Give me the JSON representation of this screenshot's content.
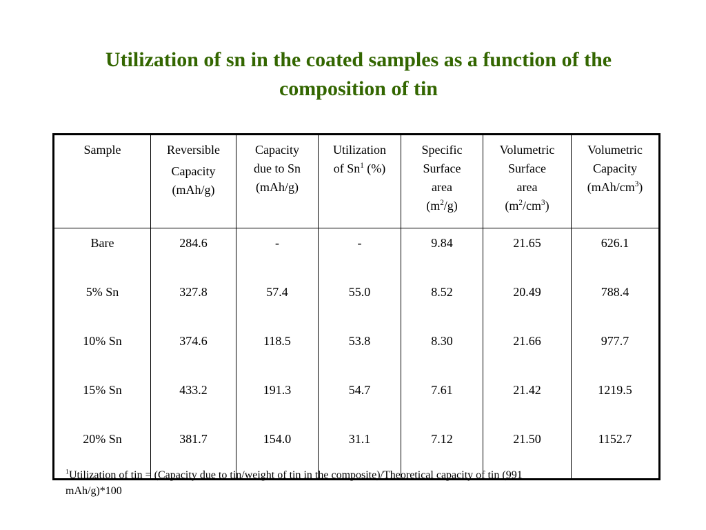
{
  "title": {
    "line1": "Utilization of sn in the coated samples as a function of the",
    "line2": "composition of tin"
  },
  "table": {
    "headers": [
      {
        "lines": [
          "Reversible",
          "Capacity",
          "(mAh/g)"
        ]
      },
      {
        "lines": [
          "Capacity",
          "due to Sn",
          "(mAh/g)"
        ]
      },
      {
        "lines": [
          "Utilization",
          "of Sn",
          "(%)"
        ],
        "sup": "1"
      },
      {
        "lines": [
          "Specific",
          "Surface",
          "area",
          "(m",
          "/g)"
        ],
        "sup": "2"
      },
      {
        "lines": [
          "Volumetric",
          "Surface",
          "area",
          "(m",
          "/cm",
          ")"
        ],
        "sup": "2",
        "sup2": "3"
      },
      {
        "lines": [
          "Volumetric",
          "Capacity",
          "(mAh/cm",
          ")"
        ],
        "sup": "3"
      }
    ],
    "sample_header": "Sample",
    "rows": [
      [
        "Bare",
        "284.6",
        "-",
        "-",
        "9.84",
        "21.65",
        "626.1"
      ],
      [
        "5% Sn",
        "327.8",
        "57.4",
        "55.0",
        "8.52",
        "20.49",
        "788.4"
      ],
      [
        "10% Sn",
        "374.6",
        "118.5",
        "53.8",
        "8.30",
        "21.66",
        "977.7"
      ],
      [
        "15% Sn",
        "433.2",
        "191.3",
        "54.7",
        "7.61",
        "21.42",
        "1219.5"
      ],
      [
        "20% Sn",
        "381.7",
        "154.0",
        "31.1",
        "7.12",
        "21.50",
        "1152.7"
      ]
    ]
  },
  "footnote": {
    "marker": "1",
    "text": "Utilization of tin = (Capacity due to tin/weight of tin in the composite)/Theoretical capacity of tin (991 mAh/g)*100"
  },
  "colors": {
    "title": "#336600",
    "text": "#000000",
    "background": "#ffffff"
  }
}
